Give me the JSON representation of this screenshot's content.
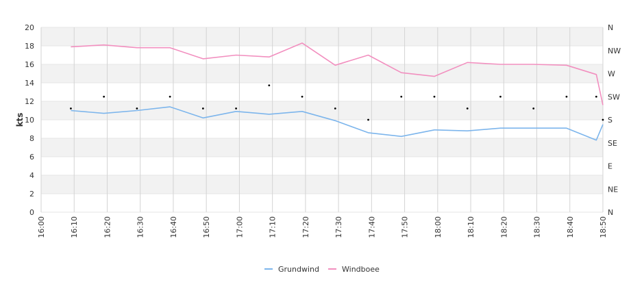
{
  "chart_data": {
    "type": "line",
    "ylabel": "kts",
    "ylim": [
      0,
      20
    ],
    "y_ticks": [
      "0",
      "2",
      "4",
      "6",
      "8",
      "10",
      "12",
      "14",
      "16",
      "18",
      "20"
    ],
    "x_ticks": [
      "16:00",
      "16:10",
      "16:20",
      "16:30",
      "16:40",
      "16:50",
      "17:00",
      "17:10",
      "17:20",
      "17:30",
      "17:40",
      "17:50",
      "18:00",
      "18:10",
      "18:20",
      "18:30",
      "18:40",
      "18:50"
    ],
    "direction_axis": {
      "labels": [
        "N",
        "NE",
        "E",
        "SE",
        "S",
        "SW",
        "W",
        "NW",
        "N"
      ],
      "range_degrees": [
        0,
        360
      ]
    },
    "x": [
      "16:09",
      "16:19",
      "16:29",
      "16:39",
      "16:49",
      "16:59",
      "17:09",
      "17:19",
      "17:29",
      "17:39",
      "17:49",
      "17:59",
      "18:09",
      "18:19",
      "18:29",
      "18:39",
      "18:48",
      "18:50"
    ],
    "series": [
      {
        "name": "Grundwind",
        "color": "#7cb5ec",
        "values": [
          11.0,
          10.7,
          11.0,
          11.4,
          10.2,
          10.9,
          10.6,
          10.9,
          9.9,
          8.6,
          8.2,
          8.9,
          8.8,
          9.1,
          9.1,
          9.1,
          7.8,
          9.5
        ]
      },
      {
        "name": "Windboee",
        "color": "#f28fbf",
        "values": [
          17.9,
          18.1,
          17.8,
          17.8,
          16.6,
          17.0,
          16.8,
          18.3,
          15.9,
          17.0,
          15.1,
          14.7,
          16.2,
          16.0,
          16.0,
          15.9,
          14.9,
          11.6
        ]
      }
    ],
    "direction_points": {
      "color": "#000000",
      "x": [
        "16:09",
        "16:19",
        "16:29",
        "16:39",
        "16:49",
        "16:59",
        "17:09",
        "17:19",
        "17:29",
        "17:39",
        "17:49",
        "17:59",
        "18:09",
        "18:19",
        "18:29",
        "18:39",
        "18:48",
        "18:50"
      ],
      "degrees": [
        202,
        225,
        202,
        225,
        202,
        202,
        247,
        225,
        202,
        180,
        225,
        225,
        202,
        225,
        202,
        225,
        225,
        180
      ]
    },
    "grid": true,
    "legend_position": "bottom-center"
  }
}
